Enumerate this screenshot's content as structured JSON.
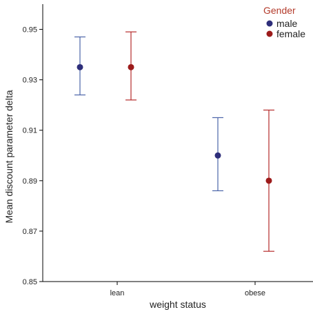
{
  "chart_data": {
    "type": "scatter",
    "title": "",
    "xlabel": "weight status",
    "ylabel": "Mean discount parameter delta",
    "categories": [
      "lean",
      "obese"
    ],
    "ylim": [
      0.85,
      0.96
    ],
    "yticks": [
      0.85,
      0.87,
      0.89,
      0.91,
      0.93,
      0.95
    ],
    "ytick_labels": [
      "0.85",
      "0.87",
      "0.89",
      "0.91",
      "0.93",
      "0.95"
    ],
    "grid": false,
    "error_bars": true,
    "legend": {
      "title": "Gender",
      "placement": "top-right"
    },
    "series": [
      {
        "name": "male",
        "color": "#2e2e7a",
        "bar_color": "#4a63a8",
        "values": [
          0.935,
          0.9
        ],
        "lower": [
          0.924,
          0.886
        ],
        "upper": [
          0.947,
          0.915
        ]
      },
      {
        "name": "female",
        "color": "#9c1b1b",
        "bar_color": "#b52a2a",
        "values": [
          0.935,
          0.89
        ],
        "lower": [
          0.922,
          0.862
        ],
        "upper": [
          0.949,
          0.918
        ]
      }
    ]
  }
}
